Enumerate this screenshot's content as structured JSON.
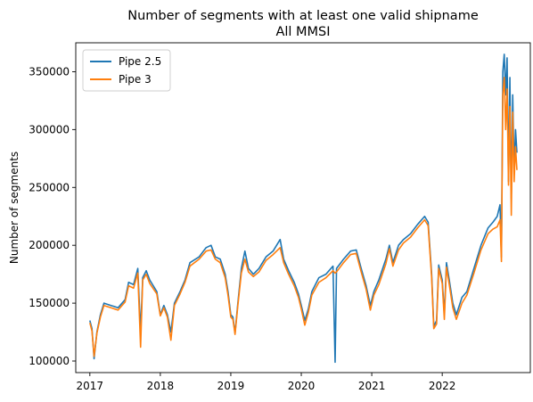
{
  "chart_data": {
    "type": "line",
    "title": "Number of segments with at least one valid shipname",
    "subtitle": "All MMSI",
    "xlabel": "",
    "ylabel": "Number of segments",
    "xlim": [
      2016.8,
      2023.25
    ],
    "ylim": [
      90000,
      375000
    ],
    "xticks": [
      2017,
      2018,
      2019,
      2020,
      2021,
      2022
    ],
    "xtick_labels": [
      "2017",
      "2018",
      "2019",
      "2020",
      "2021",
      "2022"
    ],
    "yticks": [
      100000,
      150000,
      200000,
      250000,
      300000,
      350000
    ],
    "ytick_labels": [
      "100000",
      "150000",
      "200000",
      "250000",
      "300000",
      "350000"
    ],
    "grid": false,
    "legend_position": "top-left",
    "series": [
      {
        "name": "Pipe 2.5",
        "color": "#1f77b4",
        "points": [
          [
            2017.0,
            135000
          ],
          [
            2017.03,
            128000
          ],
          [
            2017.06,
            102000
          ],
          [
            2017.1,
            125000
          ],
          [
            2017.15,
            140000
          ],
          [
            2017.2,
            150000
          ],
          [
            2017.3,
            148000
          ],
          [
            2017.4,
            146000
          ],
          [
            2017.5,
            153000
          ],
          [
            2017.55,
            168000
          ],
          [
            2017.62,
            166000
          ],
          [
            2017.68,
            180000
          ],
          [
            2017.72,
            125000
          ],
          [
            2017.75,
            172000
          ],
          [
            2017.8,
            178000
          ],
          [
            2017.85,
            170000
          ],
          [
            2017.95,
            160000
          ],
          [
            2018.0,
            140000
          ],
          [
            2018.05,
            148000
          ],
          [
            2018.1,
            140000
          ],
          [
            2018.15,
            125000
          ],
          [
            2018.2,
            150000
          ],
          [
            2018.28,
            160000
          ],
          [
            2018.35,
            170000
          ],
          [
            2018.42,
            185000
          ],
          [
            2018.55,
            190000
          ],
          [
            2018.65,
            198000
          ],
          [
            2018.72,
            200000
          ],
          [
            2018.78,
            190000
          ],
          [
            2018.85,
            188000
          ],
          [
            2018.92,
            175000
          ],
          [
            2018.96,
            160000
          ],
          [
            2019.0,
            140000
          ],
          [
            2019.03,
            138000
          ],
          [
            2019.06,
            124000
          ],
          [
            2019.1,
            150000
          ],
          [
            2019.15,
            180000
          ],
          [
            2019.2,
            195000
          ],
          [
            2019.25,
            180000
          ],
          [
            2019.32,
            175000
          ],
          [
            2019.4,
            180000
          ],
          [
            2019.5,
            190000
          ],
          [
            2019.6,
            195000
          ],
          [
            2019.7,
            205000
          ],
          [
            2019.75,
            188000
          ],
          [
            2019.82,
            178000
          ],
          [
            2019.9,
            168000
          ],
          [
            2019.96,
            158000
          ],
          [
            2020.0,
            148000
          ],
          [
            2020.05,
            135000
          ],
          [
            2020.1,
            145000
          ],
          [
            2020.15,
            160000
          ],
          [
            2020.25,
            172000
          ],
          [
            2020.35,
            175000
          ],
          [
            2020.45,
            182000
          ],
          [
            2020.48,
            99000
          ],
          [
            2020.5,
            180000
          ],
          [
            2020.6,
            188000
          ],
          [
            2020.7,
            195000
          ],
          [
            2020.78,
            196000
          ],
          [
            2020.85,
            180000
          ],
          [
            2020.92,
            165000
          ],
          [
            2020.98,
            148000
          ],
          [
            2021.03,
            160000
          ],
          [
            2021.1,
            170000
          ],
          [
            2021.2,
            188000
          ],
          [
            2021.25,
            200000
          ],
          [
            2021.3,
            185000
          ],
          [
            2021.38,
            200000
          ],
          [
            2021.45,
            205000
          ],
          [
            2021.55,
            210000
          ],
          [
            2021.65,
            218000
          ],
          [
            2021.75,
            225000
          ],
          [
            2021.8,
            220000
          ],
          [
            2021.85,
            175000
          ],
          [
            2021.88,
            130000
          ],
          [
            2021.92,
            135000
          ],
          [
            2021.95,
            183000
          ],
          [
            2022.0,
            170000
          ],
          [
            2022.03,
            140000
          ],
          [
            2022.06,
            185000
          ],
          [
            2022.1,
            170000
          ],
          [
            2022.15,
            150000
          ],
          [
            2022.2,
            140000
          ],
          [
            2022.28,
            155000
          ],
          [
            2022.35,
            160000
          ],
          [
            2022.45,
            180000
          ],
          [
            2022.55,
            200000
          ],
          [
            2022.65,
            215000
          ],
          [
            2022.72,
            220000
          ],
          [
            2022.78,
            225000
          ],
          [
            2022.82,
            235000
          ],
          [
            2022.84,
            190000
          ],
          [
            2022.86,
            350000
          ],
          [
            2022.88,
            365000
          ],
          [
            2022.9,
            330000
          ],
          [
            2022.92,
            362000
          ],
          [
            2022.94,
            255000
          ],
          [
            2022.96,
            345000
          ],
          [
            2022.98,
            240000
          ],
          [
            2023.0,
            330000
          ],
          [
            2023.02,
            265000
          ],
          [
            2023.04,
            300000
          ],
          [
            2023.06,
            280000
          ]
        ]
      },
      {
        "name": "Pipe 3",
        "color": "#ff7f0e",
        "points": [
          [
            2017.0,
            133000
          ],
          [
            2017.03,
            126000
          ],
          [
            2017.06,
            104000
          ],
          [
            2017.1,
            124000
          ],
          [
            2017.15,
            138000
          ],
          [
            2017.2,
            148000
          ],
          [
            2017.3,
            146000
          ],
          [
            2017.4,
            144000
          ],
          [
            2017.5,
            151000
          ],
          [
            2017.55,
            165000
          ],
          [
            2017.62,
            163000
          ],
          [
            2017.68,
            176000
          ],
          [
            2017.72,
            112000
          ],
          [
            2017.75,
            170000
          ],
          [
            2017.8,
            175000
          ],
          [
            2017.85,
            167000
          ],
          [
            2017.95,
            158000
          ],
          [
            2018.0,
            139000
          ],
          [
            2018.05,
            146000
          ],
          [
            2018.1,
            138000
          ],
          [
            2018.15,
            118000
          ],
          [
            2018.2,
            148000
          ],
          [
            2018.28,
            158000
          ],
          [
            2018.35,
            168000
          ],
          [
            2018.42,
            182000
          ],
          [
            2018.55,
            188000
          ],
          [
            2018.65,
            195000
          ],
          [
            2018.72,
            196000
          ],
          [
            2018.78,
            188000
          ],
          [
            2018.85,
            185000
          ],
          [
            2018.92,
            172000
          ],
          [
            2018.96,
            157000
          ],
          [
            2019.0,
            138000
          ],
          [
            2019.03,
            136000
          ],
          [
            2019.06,
            123000
          ],
          [
            2019.1,
            148000
          ],
          [
            2019.15,
            176000
          ],
          [
            2019.2,
            188000
          ],
          [
            2019.25,
            177000
          ],
          [
            2019.32,
            173000
          ],
          [
            2019.4,
            177000
          ],
          [
            2019.5,
            187000
          ],
          [
            2019.6,
            192000
          ],
          [
            2019.7,
            198000
          ],
          [
            2019.75,
            185000
          ],
          [
            2019.82,
            175000
          ],
          [
            2019.9,
            165000
          ],
          [
            2019.96,
            155000
          ],
          [
            2020.0,
            145000
          ],
          [
            2020.05,
            131000
          ],
          [
            2020.1,
            142000
          ],
          [
            2020.15,
            157000
          ],
          [
            2020.25,
            168000
          ],
          [
            2020.35,
            172000
          ],
          [
            2020.45,
            178000
          ],
          [
            2020.48,
            176000
          ],
          [
            2020.5,
            177000
          ],
          [
            2020.6,
            185000
          ],
          [
            2020.7,
            192000
          ],
          [
            2020.78,
            193000
          ],
          [
            2020.85,
            177000
          ],
          [
            2020.92,
            162000
          ],
          [
            2020.98,
            144000
          ],
          [
            2021.03,
            157000
          ],
          [
            2021.1,
            166000
          ],
          [
            2021.2,
            184000
          ],
          [
            2021.25,
            197000
          ],
          [
            2021.3,
            182000
          ],
          [
            2021.38,
            196000
          ],
          [
            2021.45,
            202000
          ],
          [
            2021.55,
            207000
          ],
          [
            2021.65,
            215000
          ],
          [
            2021.75,
            222000
          ],
          [
            2021.8,
            217000
          ],
          [
            2021.85,
            172000
          ],
          [
            2021.88,
            128000
          ],
          [
            2021.92,
            132000
          ],
          [
            2021.95,
            180000
          ],
          [
            2022.0,
            167000
          ],
          [
            2022.03,
            136000
          ],
          [
            2022.06,
            181000
          ],
          [
            2022.1,
            166000
          ],
          [
            2022.15,
            146000
          ],
          [
            2022.2,
            136000
          ],
          [
            2022.28,
            150000
          ],
          [
            2022.35,
            157000
          ],
          [
            2022.45,
            176000
          ],
          [
            2022.55,
            196000
          ],
          [
            2022.65,
            210000
          ],
          [
            2022.72,
            214000
          ],
          [
            2022.78,
            216000
          ],
          [
            2022.82,
            222000
          ],
          [
            2022.84,
            186000
          ],
          [
            2022.86,
            330000
          ],
          [
            2022.88,
            345000
          ],
          [
            2022.9,
            300000
          ],
          [
            2022.92,
            335000
          ],
          [
            2022.94,
            252000
          ],
          [
            2022.96,
            320000
          ],
          [
            2022.98,
            226000
          ],
          [
            2023.0,
            315000
          ],
          [
            2023.02,
            255000
          ],
          [
            2023.04,
            285000
          ],
          [
            2023.06,
            265000
          ]
        ]
      }
    ]
  }
}
